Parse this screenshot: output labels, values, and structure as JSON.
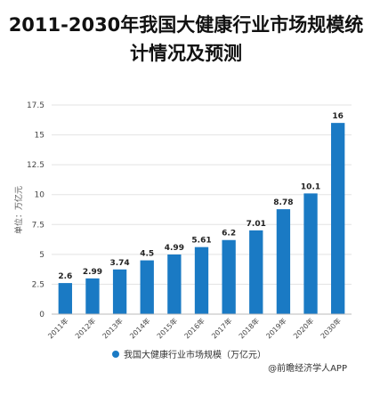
{
  "title_line1": "2011-2030年我国大健康行业市场规模统",
  "title_line2": "计情况及预测",
  "source": "@前瞻经济学人APP",
  "chart_data": {
    "type": "bar",
    "title": "2011-2030年我国大健康行业市场规模统计情况及预测",
    "ylabel": "单位：万亿元",
    "xlabel": "",
    "categories": [
      "2011年",
      "2012年",
      "2013年",
      "2014年",
      "2015年",
      "2016年",
      "2017年",
      "2018年",
      "2019年",
      "2020年",
      "2030年"
    ],
    "series": [
      {
        "name": "我国大健康行业市场规模（万亿元）",
        "values": [
          2.6,
          2.99,
          3.74,
          4.5,
          4.99,
          5.61,
          6.2,
          7.01,
          8.78,
          10.1,
          16
        ],
        "value_labels": [
          "2.6",
          "2.99",
          "3.74",
          "4.5",
          "4.99",
          "5.61",
          "6.2",
          "7.01",
          "8.78",
          "10.1",
          "16"
        ]
      }
    ],
    "yticks": [
      0,
      2.5,
      5,
      7.5,
      10,
      12.5,
      15,
      17.5
    ],
    "ytick_labels": [
      "0",
      "2.5",
      "5",
      "7.5",
      "10",
      "12.5",
      "15",
      "17.5"
    ],
    "ylim": [
      0,
      17.5
    ],
    "grid": true,
    "legend_position": "bottom",
    "colors": {
      "bar": "#1a7ac4",
      "grid": "#e3e3e3",
      "axis": "#bbbbbb",
      "text": "#444444"
    }
  }
}
